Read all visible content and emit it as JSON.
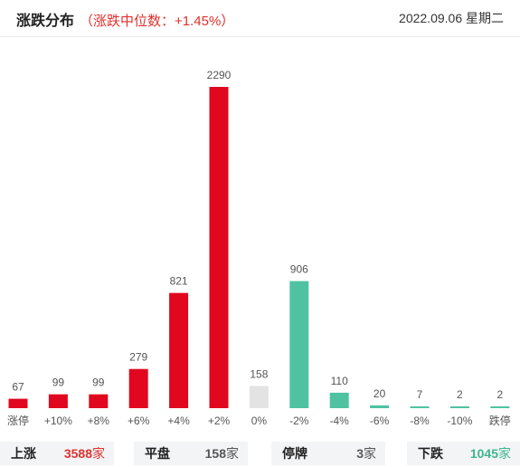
{
  "header": {
    "title": "涨跌分布",
    "median": "（涨跌中位数：+1.45%）",
    "date": "2022.09.06 星期二"
  },
  "colors": {
    "up": "#e0071f",
    "flat": "#e3e3e3",
    "down": "#4fc3a1",
    "up_text": "#e0312e",
    "down_text": "#3fb58e"
  },
  "chart_data": {
    "type": "bar",
    "categories": [
      "涨停",
      "+10%",
      "+8%",
      "+6%",
      "+4%",
      "+2%",
      "0%",
      "-2%",
      "-4%",
      "-6%",
      "-8%",
      "-10%",
      "跌停"
    ],
    "values": [
      67,
      99,
      99,
      279,
      821,
      2290,
      158,
      906,
      110,
      20,
      7,
      2,
      2
    ],
    "bar_color_groups": [
      "up",
      "up",
      "up",
      "up",
      "up",
      "up",
      "flat",
      "down",
      "down",
      "down",
      "down",
      "down",
      "down"
    ],
    "title": "",
    "xlabel": "",
    "ylabel": "",
    "ylim": [
      0,
      2290
    ],
    "grid": false,
    "legend": "none"
  },
  "footer": {
    "up": {
      "label": "上涨",
      "value": "3588",
      "unit": "家"
    },
    "flat": {
      "label": "平盘",
      "value": "158",
      "unit": "家"
    },
    "halt": {
      "label": "停牌",
      "value": "3",
      "unit": "家"
    },
    "down": {
      "label": "下跌",
      "value": "1045",
      "unit": "家"
    }
  }
}
